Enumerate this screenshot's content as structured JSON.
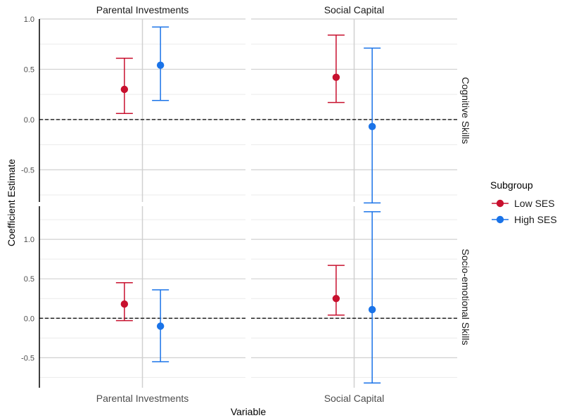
{
  "chart_data": {
    "type": "scatter",
    "xlabel": "Variable",
    "ylabel": "Coefficient Estimate",
    "column_facets": [
      "Parental Investments",
      "Social Capital"
    ],
    "row_facets": [
      "Cognitive Skills",
      "Socio-emotional Skills"
    ],
    "x_tick_labels": [
      "Parental Investments",
      "Social Capital"
    ],
    "legend": {
      "title": "Subgroup",
      "entries": [
        {
          "name": "Low SES",
          "color": "#C8102E"
        },
        {
          "name": "High SES",
          "color": "#1A73E8"
        }
      ],
      "placement": "right"
    },
    "rows": [
      {
        "name": "Cognitive Skills",
        "ylim": [
          -0.82,
          1.0
        ],
        "y_ticks": [
          1.0,
          0.5,
          0.0,
          -0.5
        ],
        "y_tick_labels": [
          "1.0",
          "0.5",
          "0.0",
          "-0.5"
        ],
        "minor_y": [
          0.75,
          0.25,
          -0.25,
          -0.75
        ]
      },
      {
        "name": "Socio-emotional Skills",
        "ylim": [
          -0.88,
          1.42
        ],
        "y_ticks": [
          1.0,
          0.5,
          0.0,
          -0.5
        ],
        "y_tick_labels": [
          "1.0",
          "0.5",
          "0.0",
          "-0.5"
        ],
        "minor_y": [
          1.25,
          0.75,
          0.25,
          -0.25,
          -0.75
        ]
      }
    ],
    "reference_line": 0,
    "series": [
      {
        "name": "Low SES",
        "points": [
          {
            "row": 0,
            "col": 0,
            "estimate": 0.3,
            "lower": 0.06,
            "upper": 0.61
          },
          {
            "row": 0,
            "col": 1,
            "estimate": 0.42,
            "lower": 0.17,
            "upper": 0.84
          },
          {
            "row": 1,
            "col": 0,
            "estimate": 0.18,
            "lower": -0.03,
            "upper": 0.45
          },
          {
            "row": 1,
            "col": 1,
            "estimate": 0.25,
            "lower": 0.04,
            "upper": 0.67
          }
        ]
      },
      {
        "name": "High SES",
        "points": [
          {
            "row": 0,
            "col": 0,
            "estimate": 0.54,
            "lower": 0.19,
            "upper": 0.92
          },
          {
            "row": 0,
            "col": 1,
            "estimate": -0.07,
            "lower": -0.83,
            "upper": 0.71
          },
          {
            "row": 1,
            "col": 0,
            "estimate": -0.1,
            "lower": -0.55,
            "upper": 0.36
          },
          {
            "row": 1,
            "col": 1,
            "estimate": 0.11,
            "lower": -0.82,
            "upper": 1.35
          }
        ]
      }
    ],
    "grid": true
  }
}
